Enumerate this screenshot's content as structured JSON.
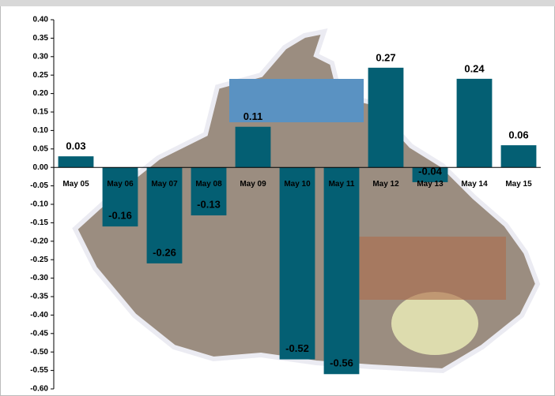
{
  "chart_data": {
    "type": "bar",
    "categories": [
      "May 05",
      "May 06",
      "May 07",
      "May 08",
      "May 09",
      "May 10",
      "May 11",
      "May 12",
      "May 13",
      "May 14",
      "May 15"
    ],
    "values": [
      0.03,
      -0.16,
      -0.26,
      -0.13,
      0.11,
      -0.52,
      -0.56,
      0.27,
      -0.04,
      0.24,
      0.06
    ],
    "color": "#045f73",
    "ylim": [
      -0.6,
      0.4
    ],
    "yticks": [
      {
        "value": -0.6,
        "label": "-0.60"
      },
      {
        "value": -0.55,
        "label": "-0.55"
      },
      {
        "value": -0.5,
        "label": "-0.50"
      },
      {
        "value": -0.45,
        "label": "-0.45"
      },
      {
        "value": -0.4,
        "label": "-0.40"
      },
      {
        "value": -0.35,
        "label": "-0.35"
      },
      {
        "value": -0.3,
        "label": "-0.30"
      },
      {
        "value": -0.25,
        "label": "-0.25"
      },
      {
        "value": -0.2,
        "label": "-0.20"
      },
      {
        "value": -0.15,
        "label": "-0.15"
      },
      {
        "value": -0.1,
        "label": "-0.10"
      },
      {
        "value": -0.05,
        "label": "-0.05"
      },
      {
        "value": 0,
        "label": "0.00"
      },
      {
        "value": 0.05,
        "label": "0.05"
      },
      {
        "value": 0.1,
        "label": "0.10"
      },
      {
        "value": 0.15,
        "label": "0.15"
      },
      {
        "value": 0.2,
        "label": "0.20"
      },
      {
        "value": 0.25,
        "label": "0.25"
      },
      {
        "value": 0.3,
        "label": "0.30"
      },
      {
        "value": 0.35,
        "label": "0.35"
      },
      {
        "value": 0.4,
        "label": "0.40"
      }
    ],
    "grid": false
  }
}
